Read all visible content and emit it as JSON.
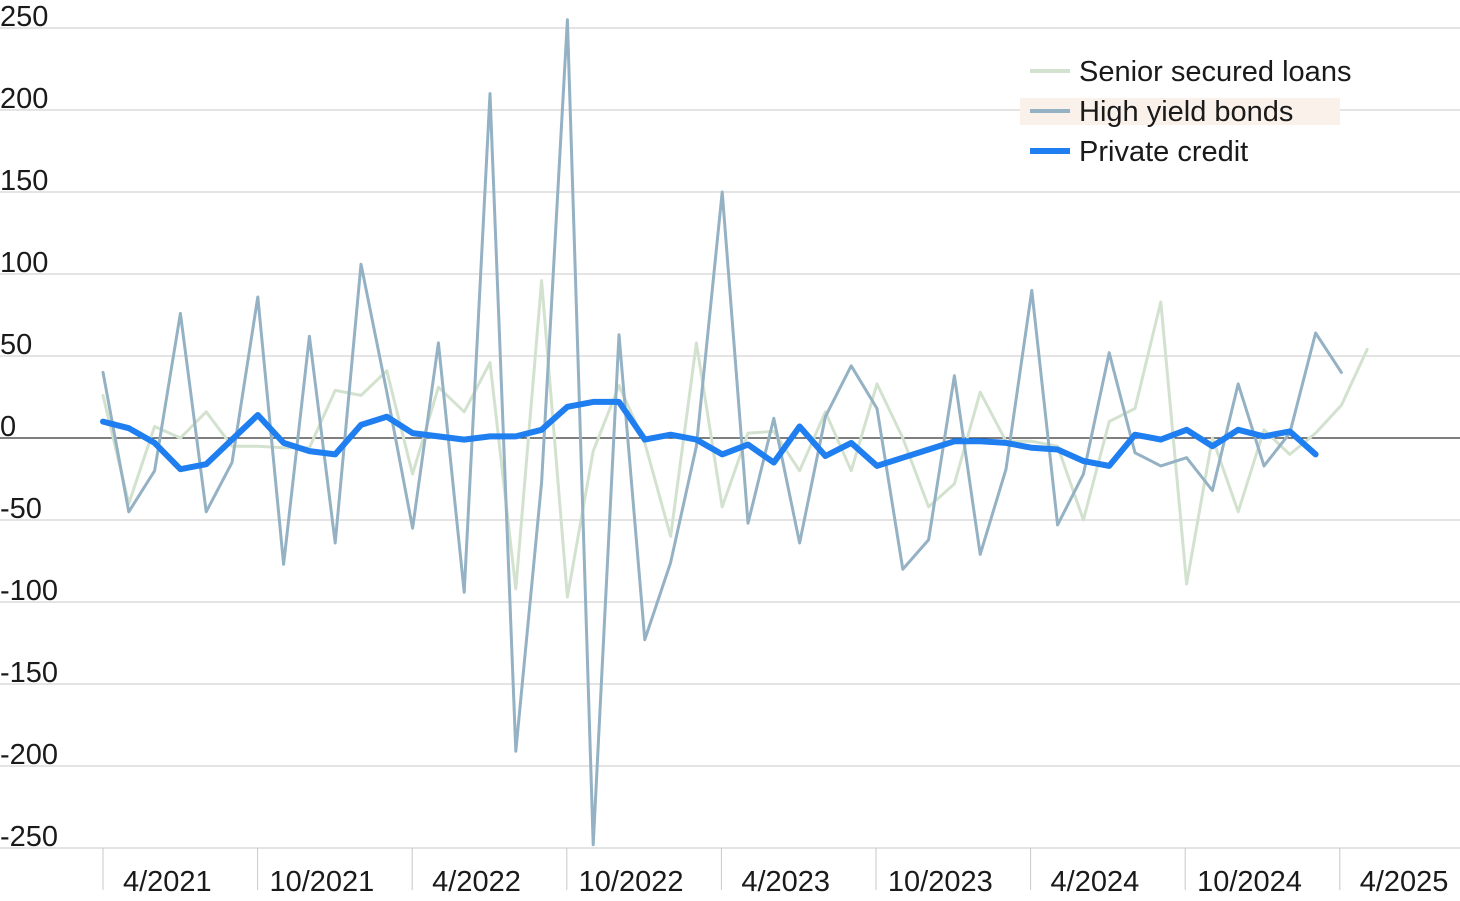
{
  "chart_data": {
    "type": "line",
    "ylim": [
      -250,
      250
    ],
    "yticks": [
      250,
      200,
      150,
      100,
      50,
      0,
      -50,
      -100,
      -150,
      -200,
      -250
    ],
    "ytick_labels": [
      "250",
      "200",
      "150",
      "100",
      "50",
      "0",
      "-50",
      "-100",
      "-150",
      "-200",
      "-250"
    ],
    "xtick_labels": [
      "4/2021",
      "10/2021",
      "4/2022",
      "10/2022",
      "4/2023",
      "10/2023",
      "4/2024",
      "10/2024",
      "4/2025"
    ],
    "grid": true,
    "legend_position": "top-right",
    "series": [
      {
        "name": "Senior secured loans",
        "color": "#d3e2cf",
        "values": [
          26,
          -40,
          7,
          0,
          16,
          -5,
          -5,
          -6,
          -6,
          29,
          26,
          41,
          -22,
          31,
          16,
          46,
          -92,
          96,
          -97,
          -8,
          32,
          -3,
          -60,
          58,
          -42,
          3,
          4,
          -20,
          16,
          -20,
          33,
          0,
          -42,
          -28,
          28,
          -2,
          -2,
          -5,
          -50,
          10,
          18,
          83,
          -89,
          0,
          -45,
          5,
          -10,
          3,
          20,
          54
        ]
      },
      {
        "name": "High yield bonds",
        "color": "#94b2c4",
        "values": [
          40,
          -45,
          -20,
          76,
          -45,
          -15,
          86,
          -77,
          62,
          -64,
          106,
          28,
          -55,
          58,
          -94,
          210,
          -191,
          -27,
          260,
          -248,
          63,
          -123,
          -76,
          -5,
          150,
          -52,
          12,
          -64,
          13,
          44,
          18,
          -80,
          -62,
          38,
          -71,
          -19,
          90,
          -53,
          -22,
          52,
          -9,
          -17,
          -12,
          -32,
          33,
          -17,
          3,
          64,
          40
        ]
      },
      {
        "name": "Private credit",
        "color": "#1f7ff0",
        "values": [
          10,
          6,
          -3,
          -19,
          -16,
          -1,
          14,
          -3,
          -8,
          -10,
          8,
          13,
          3,
          1,
          -1,
          1,
          1,
          5,
          19,
          22,
          22,
          -1,
          2,
          -1,
          -10,
          -4,
          -15,
          7,
          -11,
          -3,
          -17,
          -12,
          -7,
          -2,
          -2,
          -3,
          -6,
          -7,
          -14,
          -17,
          2,
          -1,
          5,
          -5,
          5,
          1,
          4,
          -10
        ]
      }
    ]
  }
}
